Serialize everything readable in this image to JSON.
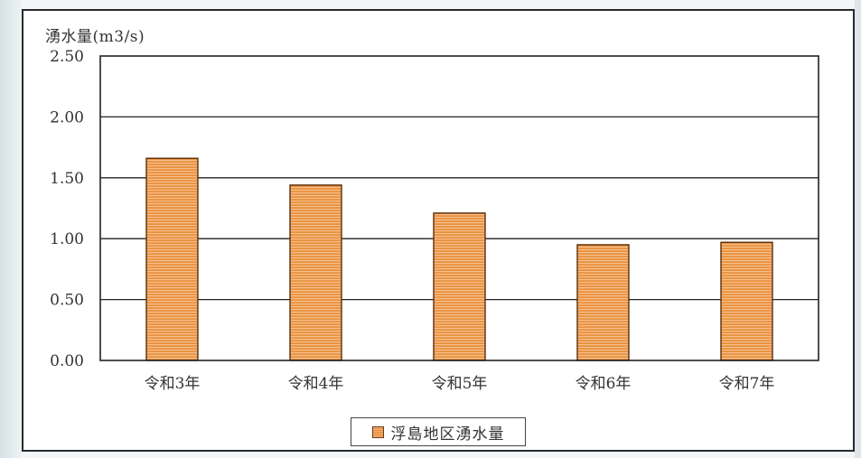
{
  "chart_data": {
    "type": "bar",
    "ylabel": "湧水量(m3/s)",
    "categories": [
      "令和3年",
      "令和4年",
      "令和5年",
      "令和6年",
      "令和7年"
    ],
    "series": [
      {
        "name": "浮島地区湧水量",
        "values": [
          1.66,
          1.44,
          1.21,
          0.95,
          0.97
        ],
        "color": "#e8913f"
      }
    ],
    "ylim": [
      0,
      2.5
    ],
    "yticks": [
      "0.00",
      "0.50",
      "1.00",
      "1.50",
      "2.00",
      "2.50"
    ],
    "grid": true,
    "legend_position": "bottom-center"
  },
  "legend": {
    "label": "浮島地区湧水量"
  }
}
